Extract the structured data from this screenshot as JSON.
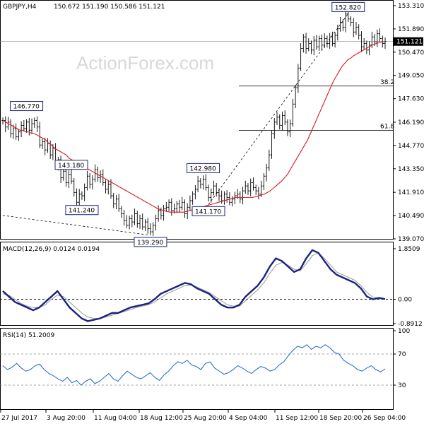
{
  "chart_data": [
    {
      "type": "candlestick",
      "title": "GBPJPY,H4",
      "ohlc_label": "150.672 151.190 150.586 151.121",
      "watermark": "ActionForex.com",
      "ylim": [
        139.07,
        153.31
      ],
      "yticks": [
        "153.310",
        "151.890",
        "150.470",
        "149.050",
        "147.630",
        "146.190",
        "144.770",
        "143.350",
        "141.910",
        "140.490",
        "139.070"
      ],
      "last_price": "151.121",
      "annotations": [
        {
          "label": "146.770",
          "price": 146.77,
          "t": 9
        },
        {
          "label": "143.180",
          "price": 143.18,
          "t": 26
        },
        {
          "label": "141.240",
          "price": 141.24,
          "t": 30
        },
        {
          "label": "139.290",
          "price": 139.29,
          "t": 56
        },
        {
          "label": "142.980",
          "price": 142.98,
          "t": 76
        },
        {
          "label": "141.170",
          "price": 141.17,
          "t": 78
        },
        {
          "label": "152.820",
          "price": 152.82,
          "t": 131
        }
      ],
      "fib_levels": [
        {
          "label": "38.2",
          "price": 148.4
        },
        {
          "label": "61.8",
          "price": 145.7
        }
      ],
      "closes": [
        146.3,
        145.9,
        146.2,
        145.5,
        145.8,
        145.3,
        145.6,
        146.0,
        145.8,
        146.2,
        145.7,
        146.1,
        146.3,
        145.9,
        144.8,
        145.0,
        144.5,
        144.9,
        144.2,
        144.6,
        143.5,
        143.9,
        142.8,
        143.2,
        142.5,
        143.0,
        142.6,
        141.9,
        141.3,
        141.8,
        141.7,
        142.2,
        142.9,
        142.4,
        142.7,
        143.3,
        142.8,
        143.0,
        142.5,
        142.1,
        142.4,
        141.7,
        141.2,
        141.5,
        140.9,
        140.6,
        140.2,
        139.9,
        140.3,
        140.1,
        140.6,
        140.0,
        140.3,
        139.8,
        140.1,
        139.7,
        139.5,
        139.9,
        140.3,
        140.8,
        140.5,
        140.9,
        141.0,
        141.3,
        140.8,
        140.9,
        141.2,
        141.0,
        141.3,
        140.6,
        141.0,
        141.4,
        141.8,
        142.1,
        142.6,
        142.4,
        142.7,
        142.2,
        141.6,
        141.9,
        142.3,
        141.9,
        141.7,
        141.4,
        141.8,
        141.6,
        141.3,
        141.5,
        141.7,
        141.8,
        141.5,
        142.0,
        142.3,
        142.0,
        142.5,
        142.2,
        142.0,
        141.8,
        142.3,
        142.9,
        143.4,
        144.2,
        145.5,
        146.2,
        146.5,
        146.0,
        146.6,
        146.2,
        145.6,
        146.1,
        147.3,
        148.3,
        149.5,
        150.7,
        151.4,
        150.7,
        151.0,
        150.6,
        151.2,
        150.8,
        151.3,
        150.9,
        151.3,
        151.0,
        151.4,
        151.0,
        151.5,
        151.9,
        152.3,
        152.0,
        152.8,
        152.5,
        152.3,
        151.7,
        152.0,
        151.5,
        150.8,
        151.0,
        150.6,
        150.9,
        151.4,
        151.1,
        151.6,
        151.3,
        151.0,
        151.12
      ],
      "ma": [
        146.3,
        146.2,
        146.1,
        146.0,
        145.9,
        145.8,
        145.7,
        145.7,
        145.6,
        145.6,
        145.5,
        145.5,
        145.4,
        145.3,
        145.2,
        145.1,
        144.9,
        144.8,
        144.6,
        144.5,
        144.4,
        144.3,
        144.2,
        144.0,
        143.9,
        143.8,
        143.7,
        143.6,
        143.5,
        143.4,
        143.3,
        143.2,
        143.1,
        143.0,
        142.9,
        142.8,
        142.7,
        142.6,
        142.5,
        142.4,
        142.3,
        142.2,
        142.1,
        142.0,
        141.9,
        141.8,
        141.7,
        141.6,
        141.5,
        141.4,
        141.3,
        141.2,
        141.1,
        141.0,
        140.9,
        140.85,
        140.8,
        140.75,
        140.7,
        140.7,
        140.7,
        140.7,
        140.7,
        140.7,
        140.75,
        140.8,
        140.85,
        140.9,
        140.95,
        141.0,
        141.05,
        141.1,
        141.15,
        141.2,
        141.25,
        141.3,
        141.35,
        141.4,
        141.45,
        141.5,
        141.55,
        141.6,
        141.6,
        141.6,
        141.6,
        141.6,
        141.6,
        141.6,
        141.65,
        141.7,
        141.75,
        141.8,
        141.9,
        142.0,
        142.15,
        142.3,
        142.45,
        142.6,
        142.8,
        143.0,
        143.3,
        143.6,
        143.9,
        144.2,
        144.5,
        144.8,
        145.1,
        145.5,
        145.9,
        146.3,
        146.7,
        147.1,
        147.5,
        147.9,
        148.3,
        148.7,
        149.0,
        149.3,
        149.6,
        149.8,
        150.0,
        150.1,
        150.25,
        150.35,
        150.45,
        150.55,
        150.65,
        150.75,
        150.85,
        150.95,
        151.0,
        151.05,
        151.1,
        151.1
      ],
      "trend_lines": [
        {
          "style": "dashed",
          "from": {
            "t": 0,
            "price": 140.5
          },
          "to": {
            "t": 56,
            "price": 139.29
          }
        },
        {
          "style": "dashed",
          "from": {
            "t": 78,
            "price": 141.17
          },
          "to": {
            "t": 131,
            "price": 152.82
          }
        }
      ]
    },
    {
      "type": "line",
      "title": "MACD(12,26,9) 0.0124 0.0194",
      "ylim": [
        -0.8912,
        1.8509
      ],
      "yticks": [
        "1.8509",
        "0.00",
        "-0.8912"
      ],
      "series": [
        {
          "values": [
            0.3,
            0.1,
            -0.1,
            -0.2,
            -0.3,
            -0.4,
            -0.3,
            -0.1,
            0.1,
            0.3,
            0.0,
            -0.3,
            -0.5,
            -0.7,
            -0.8,
            -0.75,
            -0.7,
            -0.6,
            -0.5,
            -0.5,
            -0.4,
            -0.3,
            -0.25,
            -0.2,
            -0.15,
            0.0,
            0.2,
            0.3,
            0.4,
            0.5,
            0.6,
            0.55,
            0.4,
            0.3,
            0.2,
            0.0,
            -0.2,
            -0.3,
            -0.3,
            -0.2,
            0.1,
            0.3,
            0.5,
            0.8,
            1.2,
            1.5,
            1.4,
            1.2,
            1.0,
            1.1,
            1.5,
            1.8,
            1.7,
            1.4,
            1.1,
            0.9,
            0.8,
            0.7,
            0.6,
            0.4,
            0.1,
            0.0,
            0.05,
            0.01
          ]
        },
        {
          "values": [
            0.2,
            0.15,
            0.0,
            -0.15,
            -0.25,
            -0.3,
            -0.3,
            -0.2,
            0.0,
            0.15,
            0.1,
            -0.1,
            -0.3,
            -0.5,
            -0.65,
            -0.7,
            -0.7,
            -0.65,
            -0.58,
            -0.52,
            -0.45,
            -0.38,
            -0.3,
            -0.25,
            -0.2,
            -0.1,
            0.05,
            0.2,
            0.3,
            0.4,
            0.5,
            0.52,
            0.45,
            0.35,
            0.25,
            0.1,
            -0.05,
            -0.2,
            -0.25,
            -0.25,
            -0.05,
            0.15,
            0.35,
            0.6,
            0.95,
            1.25,
            1.35,
            1.25,
            1.1,
            1.05,
            1.3,
            1.6,
            1.7,
            1.5,
            1.25,
            1.0,
            0.9,
            0.8,
            0.7,
            0.5,
            0.25,
            0.08,
            0.05,
            0.02
          ]
        }
      ]
    },
    {
      "type": "line",
      "title": "RSI(14) 51.2009",
      "ylim": [
        0,
        100
      ],
      "yticks": [
        "100",
        "70",
        "30"
      ],
      "levels": [
        70,
        30
      ],
      "values": [
        55,
        50,
        53,
        58,
        52,
        48,
        50,
        55,
        57,
        50,
        45,
        42,
        38,
        35,
        40,
        33,
        36,
        30,
        35,
        38,
        32,
        35,
        40,
        45,
        38,
        35,
        42,
        48,
        44,
        40,
        38,
        42,
        46,
        40,
        36,
        43,
        48,
        55,
        60,
        58,
        62,
        56,
        54,
        50,
        58,
        60,
        52,
        48,
        44,
        46,
        50,
        55,
        52,
        48,
        45,
        50,
        54,
        52,
        48,
        50,
        56,
        60,
        68,
        75,
        80,
        78,
        82,
        76,
        80,
        78,
        82,
        78,
        72,
        70,
        62,
        58,
        55,
        50,
        48,
        52,
        55,
        50,
        47,
        51
      ],
      "x_ticks": [
        "27 Jul 2017",
        "3 Aug 20:00",
        "11 Aug 04:00",
        "18 Aug 12:00",
        "25 Aug 20:00",
        "4 Sep 04:00",
        "11 Sep 12:00",
        "18 Sep 20:00",
        "26 Sep 04:00"
      ]
    }
  ]
}
